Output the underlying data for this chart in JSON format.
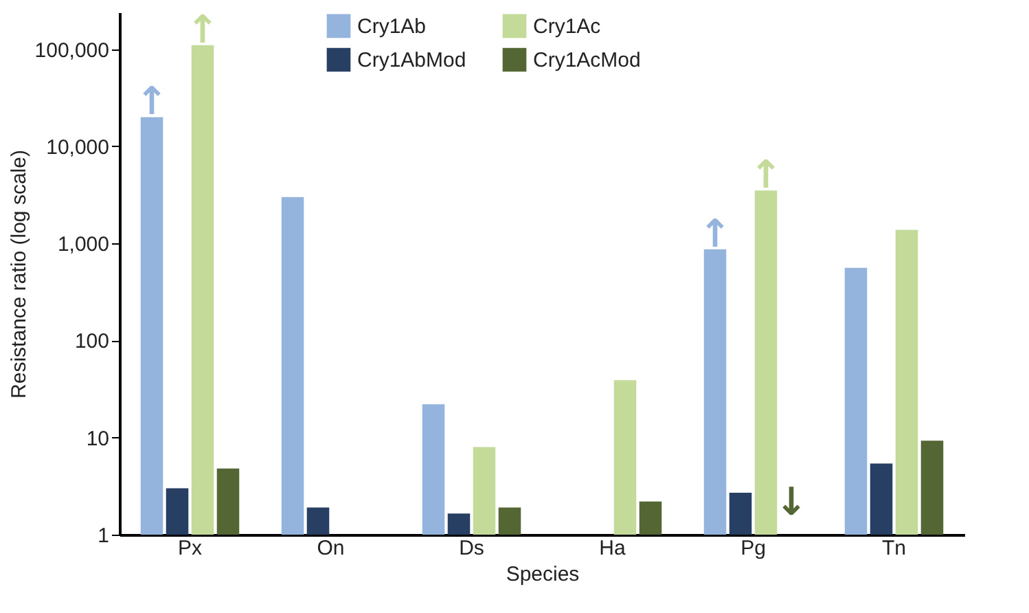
{
  "chart_data": {
    "type": "bar",
    "xlabel": "Species",
    "ylabel": "Resistance ratio (log scale)",
    "categories": [
      "Px",
      "On",
      "Ds",
      "Ha",
      "Pg",
      "Tn"
    ],
    "series": [
      {
        "name": "Cry1Ab",
        "color": "#94b3dd",
        "values": [
          20000,
          3000,
          22,
          null,
          870,
          560
        ]
      },
      {
        "name": "Cry1AbMod",
        "color": "#263f63",
        "values": [
          3,
          1.9,
          1.65,
          null,
          2.7,
          5.4
        ]
      },
      {
        "name": "Cry1Ac",
        "color": "#c3da99",
        "values": [
          110000,
          null,
          8,
          39,
          3500,
          1380
        ]
      },
      {
        "name": "Cry1AcMod",
        "color": "#546634",
        "values": [
          4.8,
          null,
          1.9,
          2.2,
          null,
          9.3
        ]
      }
    ],
    "annotations": [
      {
        "text": "↑",
        "x": "Px",
        "y": 20000
      },
      {
        "text": "↑",
        "x": "Px",
        "y": 110000
      },
      {
        "text": "↑",
        "x": "Pg",
        "y": 870
      },
      {
        "text": "↑",
        "x": "Pg",
        "y": 3500
      },
      {
        "text": "↓",
        "x": "Pg",
        "y": 1.5
      }
    ],
    "log": true,
    "ylim": [
      1,
      240000
    ],
    "yticks": [
      1,
      10,
      100,
      {
        "value": 1000,
        "label": "1,000"
      },
      {
        "value": 10000,
        "label": "10,000"
      },
      {
        "value": 100000,
        "label": "100,000"
      }
    ],
    "grid": false,
    "legend": "top"
  }
}
